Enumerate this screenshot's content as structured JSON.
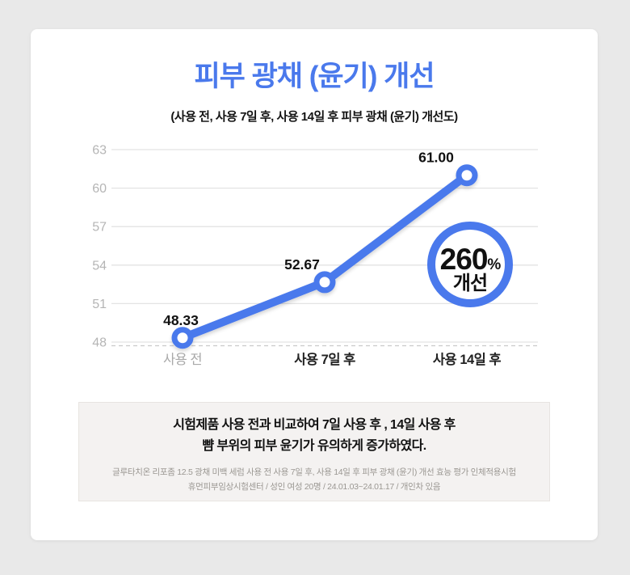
{
  "colors": {
    "page_bg": "#e9e9e9",
    "card_bg": "#ffffff",
    "accent_blue": "#4a79ec",
    "grid_line": "#e3e3e3",
    "axis_dash_line": "#cbcbcb",
    "tick_label": "#b5b5b5",
    "muted_category": "#a9a9a9",
    "dark_text": "#141414",
    "detail_text": "#9a9792",
    "note_box_bg": "#f4f2f1",
    "note_box_border": "#e7e4e1"
  },
  "header": {
    "title": "피부 광채 (윤기) 개선",
    "subtitle": "(사용 전, 사용 7일 후, 사용 14일 후 피부 광채 (윤기) 개선도)"
  },
  "chart_data": {
    "type": "line",
    "title": "피부 광채 (윤기) 개선",
    "categories": [
      "사용 전",
      "사용 7일 후",
      "사용 14일 후"
    ],
    "values": [
      48.33,
      52.67,
      61.0
    ],
    "value_labels": [
      "48.33",
      "52.67",
      "61.00"
    ],
    "ylim": [
      48,
      63
    ],
    "yticks": [
      48,
      51,
      54,
      57,
      60,
      63
    ],
    "xlabel": "",
    "ylabel": "",
    "grid": true,
    "legend": "none",
    "line_color": "#4a79ec",
    "marker": "open-circle",
    "badge": {
      "value": "260",
      "unit": "%",
      "label": "개선"
    }
  },
  "footnote": {
    "headline_lines": [
      "시험제품 사용 전과 비교하여 7일 사용 후 , 14일 사용 후",
      "뺨 부위의 피부 윤기가 유의하게 증가하였다."
    ],
    "detail_lines": [
      "글루타치온 리포좀 12.5 광채 미백 세럼 사용 전 사용 7일 후, 사용 14일 후 피부 광채 (윤기) 개선 효능 평가 인체적용시험",
      "휴먼피부임상시험센터 / 성인 여성 20명 / 24.01.03~24.01.17 / 개인차 있음"
    ]
  }
}
